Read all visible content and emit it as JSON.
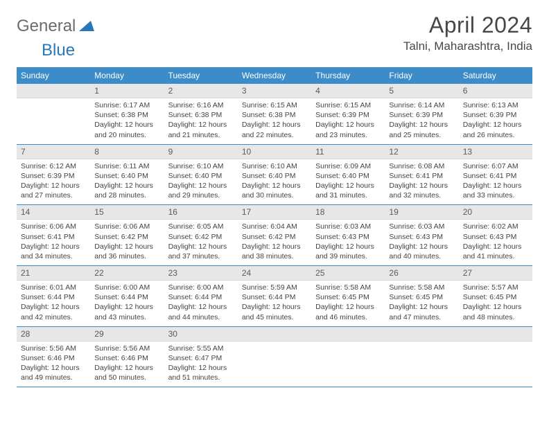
{
  "logo": {
    "general": "General",
    "blue": "Blue"
  },
  "title": "April 2024",
  "location": "Talni, Maharashtra, India",
  "colors": {
    "header_bg": "#3c8cc9",
    "header_text": "#ffffff",
    "numrow_bg": "#e7e7e7",
    "text": "#444444",
    "accent": "#2a77b8"
  },
  "day_names": [
    "Sunday",
    "Monday",
    "Tuesday",
    "Wednesday",
    "Thursday",
    "Friday",
    "Saturday"
  ],
  "weeks": [
    {
      "nums": [
        "",
        "1",
        "2",
        "3",
        "4",
        "5",
        "6"
      ],
      "cells": [
        "",
        "Sunrise: 6:17 AM\nSunset: 6:38 PM\nDaylight: 12 hours and 20 minutes.",
        "Sunrise: 6:16 AM\nSunset: 6:38 PM\nDaylight: 12 hours and 21 minutes.",
        "Sunrise: 6:15 AM\nSunset: 6:38 PM\nDaylight: 12 hours and 22 minutes.",
        "Sunrise: 6:15 AM\nSunset: 6:39 PM\nDaylight: 12 hours and 23 minutes.",
        "Sunrise: 6:14 AM\nSunset: 6:39 PM\nDaylight: 12 hours and 25 minutes.",
        "Sunrise: 6:13 AM\nSunset: 6:39 PM\nDaylight: 12 hours and 26 minutes."
      ]
    },
    {
      "nums": [
        "7",
        "8",
        "9",
        "10",
        "11",
        "12",
        "13"
      ],
      "cells": [
        "Sunrise: 6:12 AM\nSunset: 6:39 PM\nDaylight: 12 hours and 27 minutes.",
        "Sunrise: 6:11 AM\nSunset: 6:40 PM\nDaylight: 12 hours and 28 minutes.",
        "Sunrise: 6:10 AM\nSunset: 6:40 PM\nDaylight: 12 hours and 29 minutes.",
        "Sunrise: 6:10 AM\nSunset: 6:40 PM\nDaylight: 12 hours and 30 minutes.",
        "Sunrise: 6:09 AM\nSunset: 6:40 PM\nDaylight: 12 hours and 31 minutes.",
        "Sunrise: 6:08 AM\nSunset: 6:41 PM\nDaylight: 12 hours and 32 minutes.",
        "Sunrise: 6:07 AM\nSunset: 6:41 PM\nDaylight: 12 hours and 33 minutes."
      ]
    },
    {
      "nums": [
        "14",
        "15",
        "16",
        "17",
        "18",
        "19",
        "20"
      ],
      "cells": [
        "Sunrise: 6:06 AM\nSunset: 6:41 PM\nDaylight: 12 hours and 34 minutes.",
        "Sunrise: 6:06 AM\nSunset: 6:42 PM\nDaylight: 12 hours and 36 minutes.",
        "Sunrise: 6:05 AM\nSunset: 6:42 PM\nDaylight: 12 hours and 37 minutes.",
        "Sunrise: 6:04 AM\nSunset: 6:42 PM\nDaylight: 12 hours and 38 minutes.",
        "Sunrise: 6:03 AM\nSunset: 6:43 PM\nDaylight: 12 hours and 39 minutes.",
        "Sunrise: 6:03 AM\nSunset: 6:43 PM\nDaylight: 12 hours and 40 minutes.",
        "Sunrise: 6:02 AM\nSunset: 6:43 PM\nDaylight: 12 hours and 41 minutes."
      ]
    },
    {
      "nums": [
        "21",
        "22",
        "23",
        "24",
        "25",
        "26",
        "27"
      ],
      "cells": [
        "Sunrise: 6:01 AM\nSunset: 6:44 PM\nDaylight: 12 hours and 42 minutes.",
        "Sunrise: 6:00 AM\nSunset: 6:44 PM\nDaylight: 12 hours and 43 minutes.",
        "Sunrise: 6:00 AM\nSunset: 6:44 PM\nDaylight: 12 hours and 44 minutes.",
        "Sunrise: 5:59 AM\nSunset: 6:44 PM\nDaylight: 12 hours and 45 minutes.",
        "Sunrise: 5:58 AM\nSunset: 6:45 PM\nDaylight: 12 hours and 46 minutes.",
        "Sunrise: 5:58 AM\nSunset: 6:45 PM\nDaylight: 12 hours and 47 minutes.",
        "Sunrise: 5:57 AM\nSunset: 6:45 PM\nDaylight: 12 hours and 48 minutes."
      ]
    },
    {
      "nums": [
        "28",
        "29",
        "30",
        "",
        "",
        "",
        ""
      ],
      "cells": [
        "Sunrise: 5:56 AM\nSunset: 6:46 PM\nDaylight: 12 hours and 49 minutes.",
        "Sunrise: 5:56 AM\nSunset: 6:46 PM\nDaylight: 12 hours and 50 minutes.",
        "Sunrise: 5:55 AM\nSunset: 6:47 PM\nDaylight: 12 hours and 51 minutes.",
        "",
        "",
        "",
        ""
      ]
    }
  ]
}
